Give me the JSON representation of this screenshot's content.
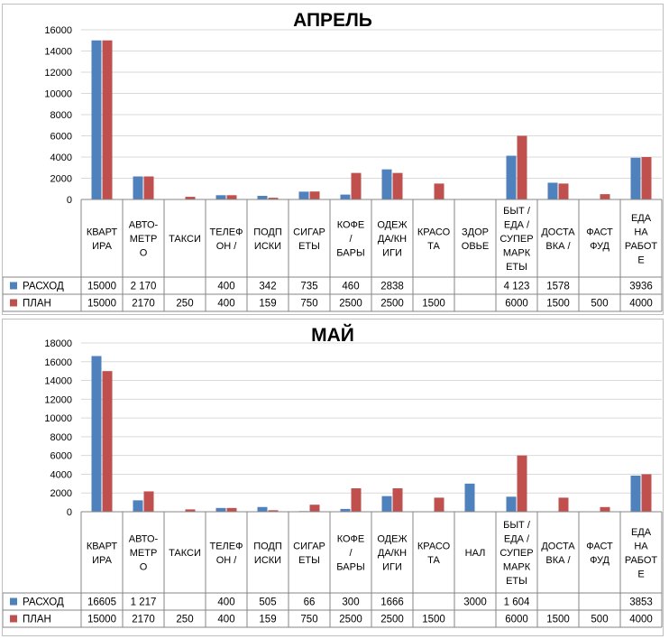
{
  "colors": {
    "expense": "#4f81bd",
    "plan": "#c0504d"
  },
  "chart_data": [
    {
      "type": "bar",
      "title": "АПРЕЛЬ",
      "ylim": [
        0,
        16000
      ],
      "yticks": [
        "0",
        "2000",
        "4000",
        "6000",
        "8000",
        "10000",
        "12000",
        "14000",
        "16000"
      ],
      "categories": [
        [
          "КВАРТ",
          "ИРА"
        ],
        [
          "АВТО-",
          "МЕТР",
          "О"
        ],
        [
          "ТАКСИ"
        ],
        [
          "ТЕЛЕФ",
          "ОН /"
        ],
        [
          "ПОДП",
          "ИСКИ"
        ],
        [
          "СИГАР",
          "ЕТЫ"
        ],
        [
          "КОФЕ",
          "/",
          "БАРЫ"
        ],
        [
          "ОДЕЖ",
          "ДА/КН",
          "ИГИ"
        ],
        [
          "КРАСО",
          "ТА"
        ],
        [
          "ЗДОР",
          "ОВЬЕ"
        ],
        [
          "БЫТ /",
          "ЕДА /",
          "СУПЕР",
          "МАРК",
          "ЕТЫ"
        ],
        [
          "ДОСТА",
          "ВКА /"
        ],
        [
          "ФАСТ",
          "ФУД"
        ],
        [
          "ЕДА",
          "НА",
          "РАБОТ",
          "Е"
        ]
      ],
      "series": [
        {
          "name": "РАСХОД",
          "values": [
            15000,
            2170,
            null,
            400,
            342,
            735,
            460,
            2838,
            null,
            null,
            4123,
            1578,
            null,
            3936
          ],
          "labels": [
            "15000",
            "2 170",
            "",
            "400",
            "342",
            "735",
            "460",
            "2838",
            "",
            "",
            "4 123",
            "1578",
            "",
            "3936"
          ]
        },
        {
          "name": "ПЛАН",
          "values": [
            15000,
            2170,
            250,
            400,
            159,
            750,
            2500,
            2500,
            1500,
            null,
            6000,
            1500,
            500,
            4000
          ],
          "labels": [
            "15000",
            "2170",
            "250",
            "400",
            "159",
            "750",
            "2500",
            "2500",
            "1500",
            "",
            "6000",
            "1500",
            "500",
            "4000"
          ]
        }
      ],
      "grid": true,
      "legend": "data-table"
    },
    {
      "type": "bar",
      "title": "МАЙ",
      "ylim": [
        0,
        18000
      ],
      "yticks": [
        "0",
        "2000",
        "4000",
        "6000",
        "8000",
        "10000",
        "12000",
        "14000",
        "16000",
        "18000"
      ],
      "categories": [
        [
          "КВАРТ",
          "ИРА"
        ],
        [
          "АВТО-",
          "МЕТР",
          "О"
        ],
        [
          "ТАКСИ"
        ],
        [
          "ТЕЛЕФ",
          "ОН /"
        ],
        [
          "ПОДП",
          "ИСКИ"
        ],
        [
          "СИГАР",
          "ЕТЫ"
        ],
        [
          "КОФЕ",
          "/",
          "БАРЫ"
        ],
        [
          "ОДЕЖ",
          "ДА/КН",
          "ИГИ"
        ],
        [
          "КРАСО",
          "ТА"
        ],
        [
          "НАЛ"
        ],
        [
          "БЫТ /",
          "ЕДА /",
          "СУПЕР",
          "МАРК",
          "ЕТЫ"
        ],
        [
          "ДОСТА",
          "ВКА /"
        ],
        [
          "ФАСТ",
          "ФУД"
        ],
        [
          "ЕДА",
          "НА",
          "РАБОТ",
          "Е"
        ]
      ],
      "series": [
        {
          "name": "РАСХОД",
          "values": [
            16605,
            1217,
            null,
            400,
            505,
            66,
            300,
            1666,
            null,
            3000,
            1604,
            null,
            null,
            3853
          ],
          "labels": [
            "16605",
            "1 217",
            "",
            "400",
            "505",
            "66",
            "300",
            "1666",
            "",
            "3000",
            "1 604",
            "",
            "",
            "3853"
          ]
        },
        {
          "name": "ПЛАН",
          "values": [
            15000,
            2170,
            250,
            400,
            159,
            750,
            2500,
            2500,
            1500,
            null,
            6000,
            1500,
            500,
            4000
          ],
          "labels": [
            "15000",
            "2170",
            "250",
            "400",
            "159",
            "750",
            "2500",
            "2500",
            "1500",
            "",
            "6000",
            "1500",
            "500",
            "4000"
          ]
        }
      ],
      "grid": true,
      "legend": "data-table"
    }
  ]
}
